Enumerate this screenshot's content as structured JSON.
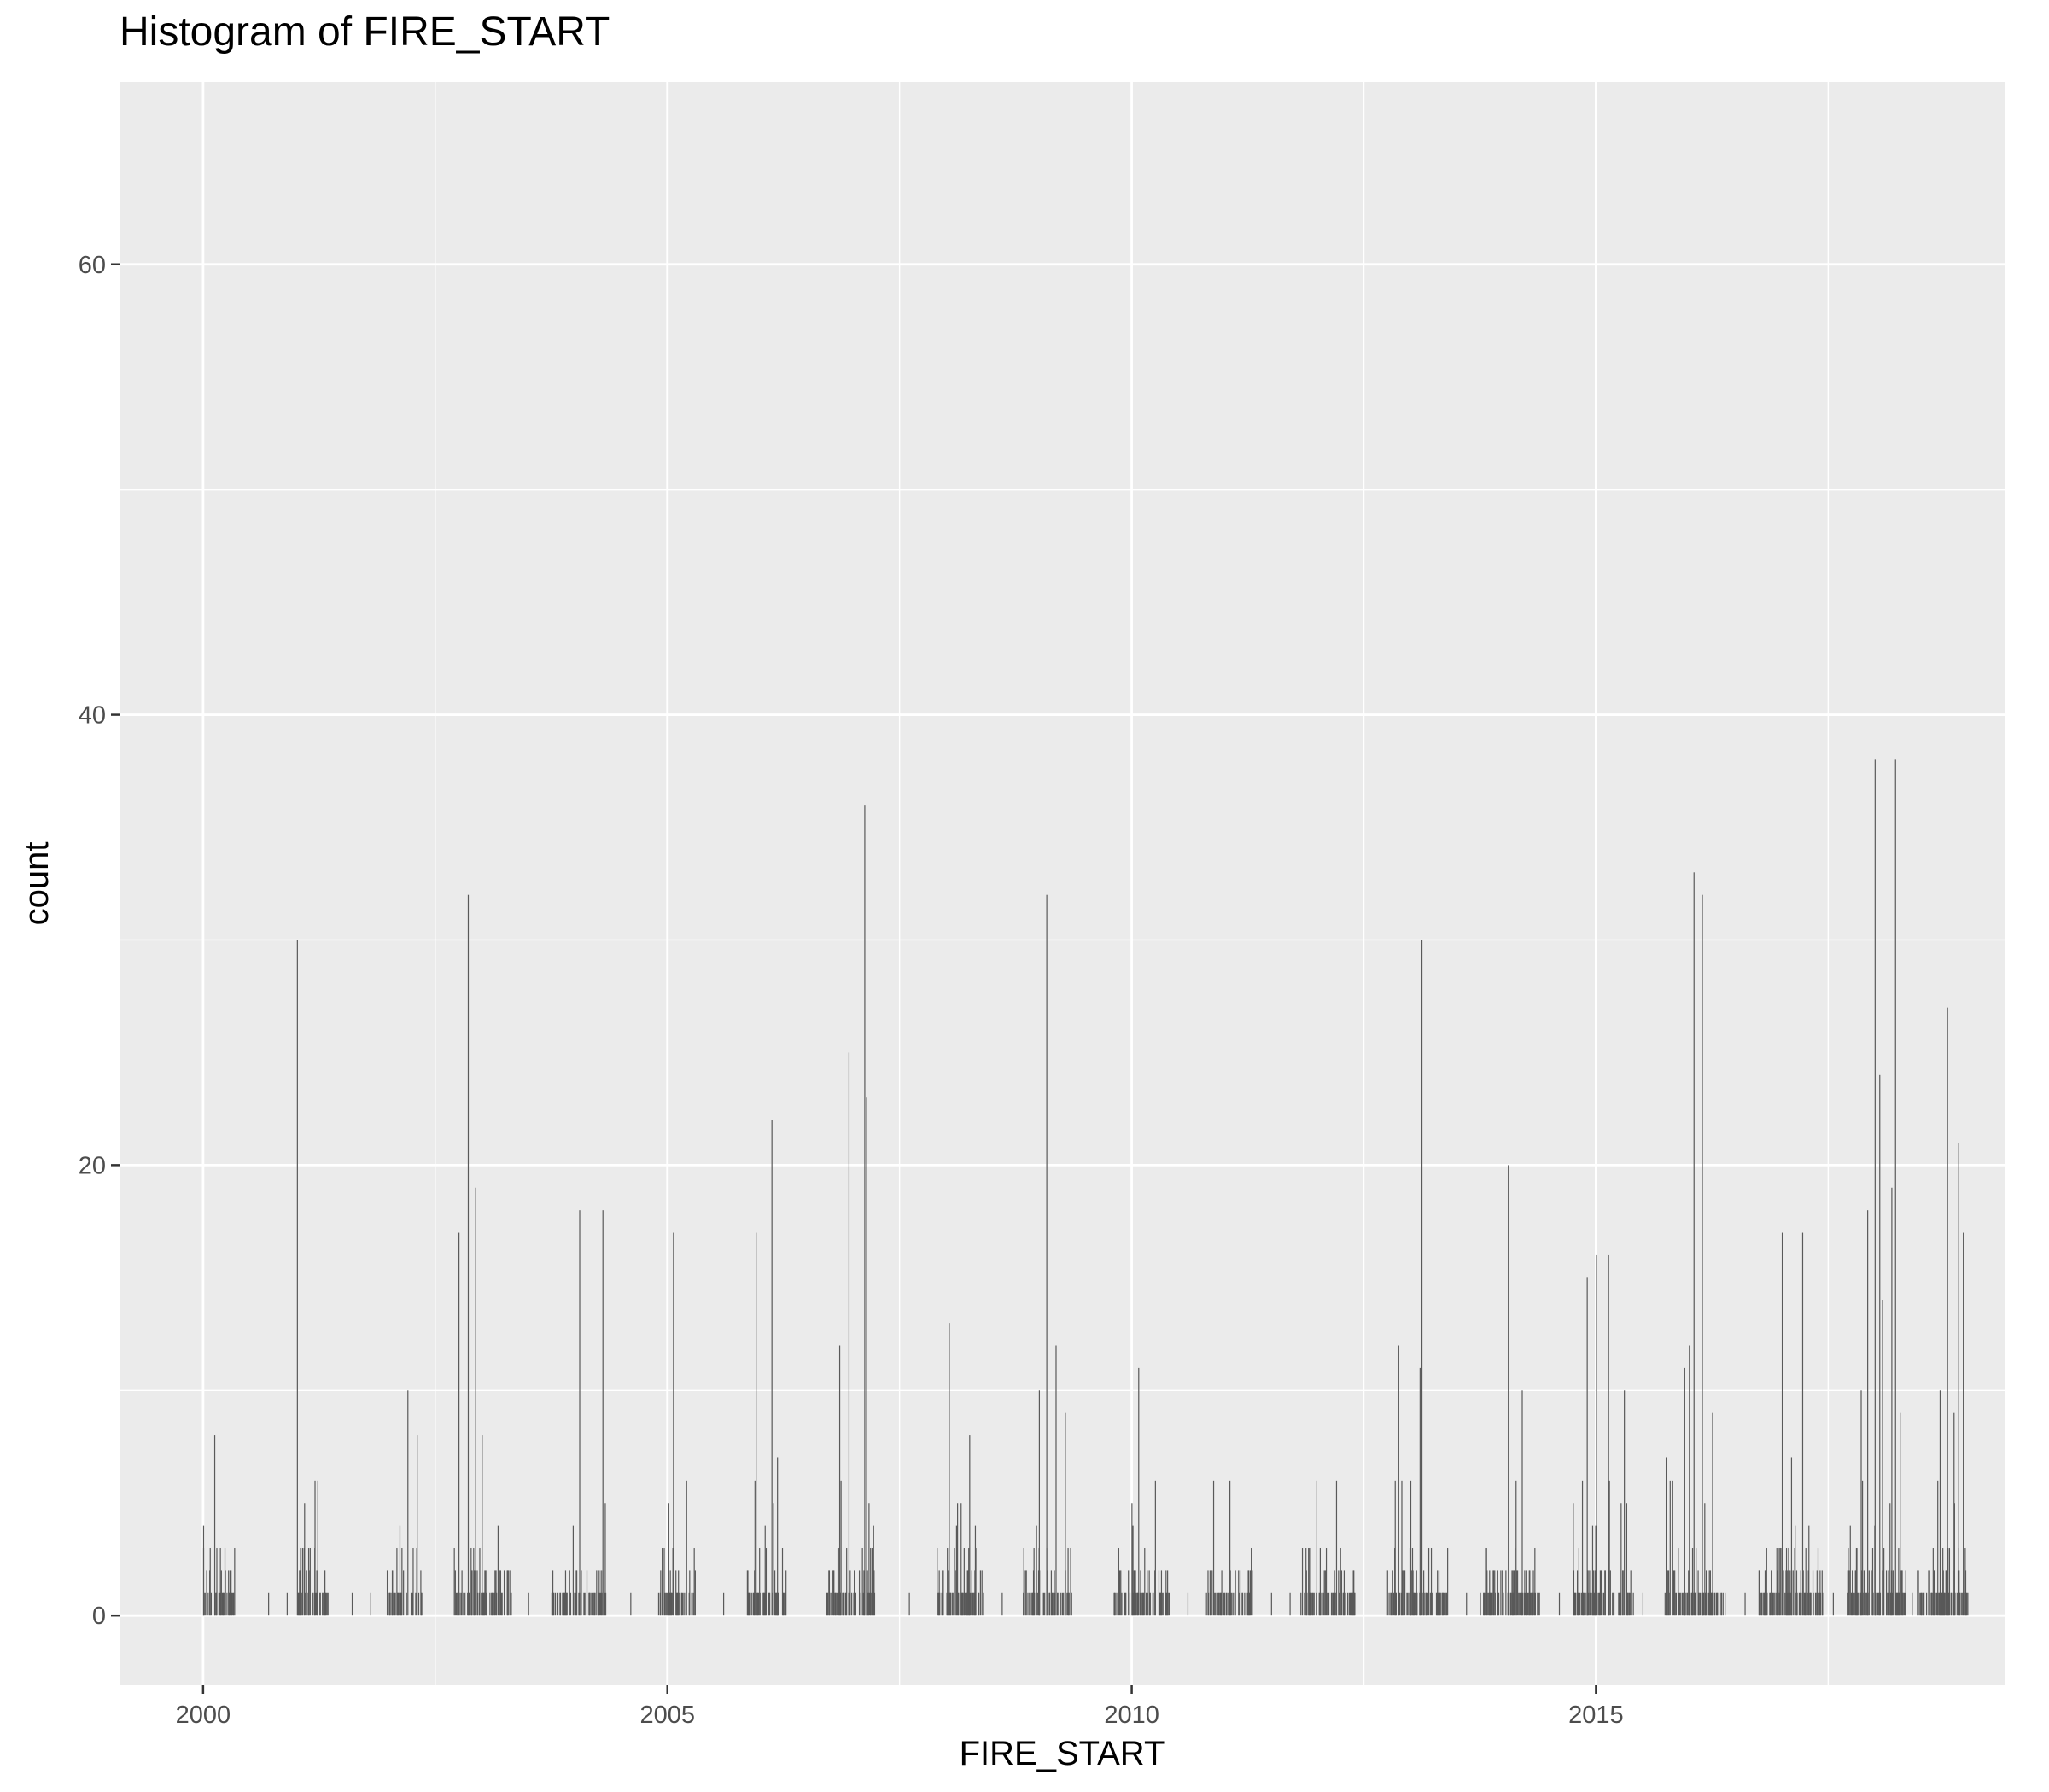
{
  "chart_data": {
    "type": "bar",
    "title": "Histogram of FIRE_START",
    "xlabel": "FIRE_START",
    "ylabel": "count",
    "xlim": [
      1999.1,
      2019.4
    ],
    "ylim": [
      -3.1,
      68.1
    ],
    "x_ticks": [
      2000,
      2005,
      2010,
      2015
    ],
    "y_ticks": [
      0,
      20,
      40,
      60
    ],
    "grid": true,
    "bar_color": "#595959",
    "panel_bg": "#ebebeb",
    "grid_color": "#ffffff",
    "notable_bins": [
      {
        "x": 2000.0,
        "y": 4
      },
      {
        "x": 2000.12,
        "y": 8
      },
      {
        "x": 2001.01,
        "y": 30
      },
      {
        "x": 2001.2,
        "y": 6
      },
      {
        "x": 2002.2,
        "y": 10
      },
      {
        "x": 2002.3,
        "y": 8
      },
      {
        "x": 2002.75,
        "y": 17
      },
      {
        "x": 2002.85,
        "y": 32
      },
      {
        "x": 2002.93,
        "y": 19
      },
      {
        "x": 2003.0,
        "y": 8
      },
      {
        "x": 2004.05,
        "y": 18
      },
      {
        "x": 2004.3,
        "y": 18
      },
      {
        "x": 2005.06,
        "y": 17
      },
      {
        "x": 2005.95,
        "y": 17
      },
      {
        "x": 2006.12,
        "y": 22
      },
      {
        "x": 2006.18,
        "y": 7
      },
      {
        "x": 2006.85,
        "y": 12
      },
      {
        "x": 2006.95,
        "y": 25
      },
      {
        "x": 2007.12,
        "y": 36
      },
      {
        "x": 2007.14,
        "y": 23
      },
      {
        "x": 2008.03,
        "y": 13
      },
      {
        "x": 2008.25,
        "y": 8
      },
      {
        "x": 2009.0,
        "y": 10
      },
      {
        "x": 2009.08,
        "y": 32
      },
      {
        "x": 2009.18,
        "y": 12
      },
      {
        "x": 2009.28,
        "y": 9
      },
      {
        "x": 2010.07,
        "y": 11
      },
      {
        "x": 2010.25,
        "y": 6
      },
      {
        "x": 2012.2,
        "y": 6
      },
      {
        "x": 2012.87,
        "y": 12
      },
      {
        "x": 2013.0,
        "y": 6
      },
      {
        "x": 2013.1,
        "y": 11
      },
      {
        "x": 2013.12,
        "y": 30
      },
      {
        "x": 2014.05,
        "y": 20
      },
      {
        "x": 2014.2,
        "y": 10
      },
      {
        "x": 2014.9,
        "y": 15
      },
      {
        "x": 2015.0,
        "y": 16
      },
      {
        "x": 2015.13,
        "y": 16
      },
      {
        "x": 2015.3,
        "y": 10
      },
      {
        "x": 2015.75,
        "y": 7
      },
      {
        "x": 2015.95,
        "y": 11
      },
      {
        "x": 2016.0,
        "y": 12
      },
      {
        "x": 2016.05,
        "y": 33
      },
      {
        "x": 2016.14,
        "y": 32
      },
      {
        "x": 2016.25,
        "y": 9
      },
      {
        "x": 2017.0,
        "y": 17
      },
      {
        "x": 2017.1,
        "y": 7
      },
      {
        "x": 2017.22,
        "y": 17
      },
      {
        "x": 2017.85,
        "y": 10
      },
      {
        "x": 2017.92,
        "y": 18
      },
      {
        "x": 2018.0,
        "y": 38
      },
      {
        "x": 2018.05,
        "y": 24
      },
      {
        "x": 2018.08,
        "y": 14
      },
      {
        "x": 2018.18,
        "y": 19
      },
      {
        "x": 2018.22,
        "y": 38
      },
      {
        "x": 2018.27,
        "y": 9
      },
      {
        "x": 2018.7,
        "y": 10
      },
      {
        "x": 2018.78,
        "y": 27
      },
      {
        "x": 2018.85,
        "y": 9
      },
      {
        "x": 2018.9,
        "y": 21
      },
      {
        "x": 2018.95,
        "y": 17
      }
    ],
    "active_periods": [
      [
        2000.0,
        2000.35
      ],
      [
        2001.0,
        2001.35
      ],
      [
        2001.95,
        2002.35
      ],
      [
        2002.7,
        2003.35
      ],
      [
        2003.75,
        2004.35
      ],
      [
        2004.9,
        2005.3
      ],
      [
        2005.85,
        2006.3
      ],
      [
        2006.7,
        2007.25
      ],
      [
        2007.9,
        2008.4
      ],
      [
        2008.8,
        2009.35
      ],
      [
        2009.8,
        2010.4
      ],
      [
        2010.8,
        2011.3
      ],
      [
        2011.8,
        2012.4
      ],
      [
        2012.75,
        2013.4
      ],
      [
        2013.75,
        2014.4
      ],
      [
        2014.75,
        2015.4
      ],
      [
        2015.7,
        2016.4
      ],
      [
        2016.75,
        2017.45
      ],
      [
        2017.7,
        2018.35
      ],
      [
        2018.45,
        2019.0
      ]
    ]
  }
}
